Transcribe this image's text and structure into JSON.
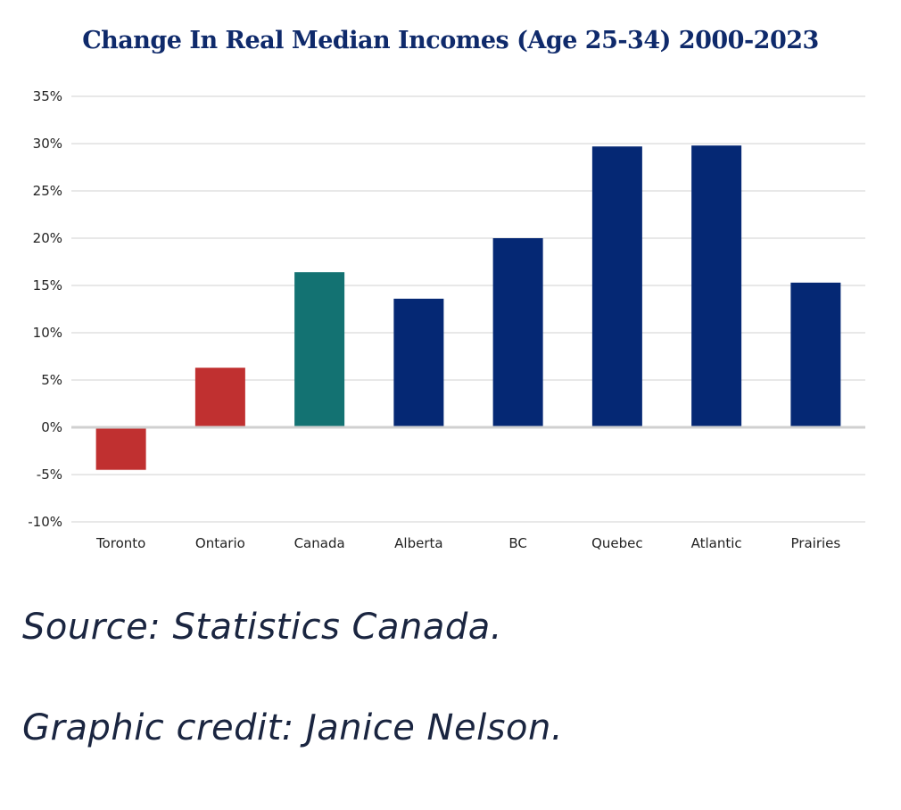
{
  "chart_data": {
    "type": "bar",
    "title": "Change In Real Median Incomes (Age 25-34) 2000-2023",
    "xlabel": "",
    "ylabel": "",
    "categories": [
      "Toronto",
      "Ontario",
      "Canada",
      "Alberta",
      "BC",
      "Quebec",
      "Atlantic",
      "Prairies"
    ],
    "values": [
      -4.5,
      6.3,
      16.4,
      13.6,
      20.0,
      29.7,
      29.8,
      15.3
    ],
    "bar_colors": [
      "#c03030",
      "#c03030",
      "#137272",
      "#052874",
      "#052874",
      "#052874",
      "#052874",
      "#052874"
    ],
    "ylim": [
      -10,
      35
    ],
    "yticks": [
      -10,
      -5,
      0,
      5,
      10,
      15,
      20,
      25,
      30,
      35
    ],
    "ytick_labels": [
      "-10%",
      "-5%",
      "0%",
      "5%",
      "10%",
      "15%",
      "20%",
      "25%",
      "30%",
      "35%"
    ],
    "grid": true,
    "legend": "none"
  },
  "footer": {
    "source": "Source: Statistics Canada.",
    "credit": "Graphic credit: Janice Nelson."
  },
  "colors": {
    "title": "#0f2a6b",
    "grid": "#d9d9d9",
    "zero_line": "#d0d0d0"
  }
}
